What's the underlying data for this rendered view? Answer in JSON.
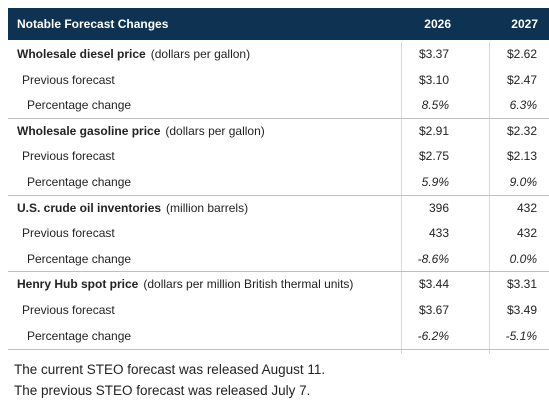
{
  "table": {
    "header": [
      "Notable Forecast Changes",
      "2026",
      "2027"
    ],
    "groups": [
      {
        "title": "Wholesale diesel price",
        "unit": "(dollars per gallon)",
        "values": [
          "$3.37",
          "$2.62"
        ],
        "rows": [
          {
            "label": "Previous forecast",
            "values": [
              "$3.10",
              "$2.47"
            ]
          },
          {
            "label": "Percentage change",
            "values": [
              "8.5%",
              "6.3%"
            ]
          }
        ]
      },
      {
        "title": "Wholesale gasoline price",
        "unit": "(dollars per gallon)",
        "values": [
          "$2.91",
          "$2.32"
        ],
        "rows": [
          {
            "label": "Previous forecast",
            "values": [
              "$2.75",
              "$2.13"
            ]
          },
          {
            "label": "Percentage change",
            "values": [
              "5.9%",
              "9.0%"
            ]
          }
        ]
      },
      {
        "title": "U.S. crude oil inventories",
        "unit": "(million barrels)",
        "values": [
          "396",
          "432"
        ],
        "rows": [
          {
            "label": "Previous forecast",
            "values": [
              "433",
              "432"
            ]
          },
          {
            "label": "Percentage change",
            "values": [
              "-8.6%",
              "0.0%"
            ]
          }
        ]
      },
      {
        "title": "Henry Hub spot price",
        "unit": "(dollars per million British thermal units)",
        "values": [
          "$3.44",
          "$3.31"
        ],
        "rows": [
          {
            "label": "Previous forecast",
            "values": [
              "$3.67",
              "$3.49"
            ]
          },
          {
            "label": "Percentage change",
            "values": [
              "-6.2%",
              "-5.1%"
            ]
          }
        ]
      }
    ],
    "footnotes": [
      "The current STEO forecast was released August 11.",
      "The previous STEO forecast was released July 7."
    ]
  }
}
